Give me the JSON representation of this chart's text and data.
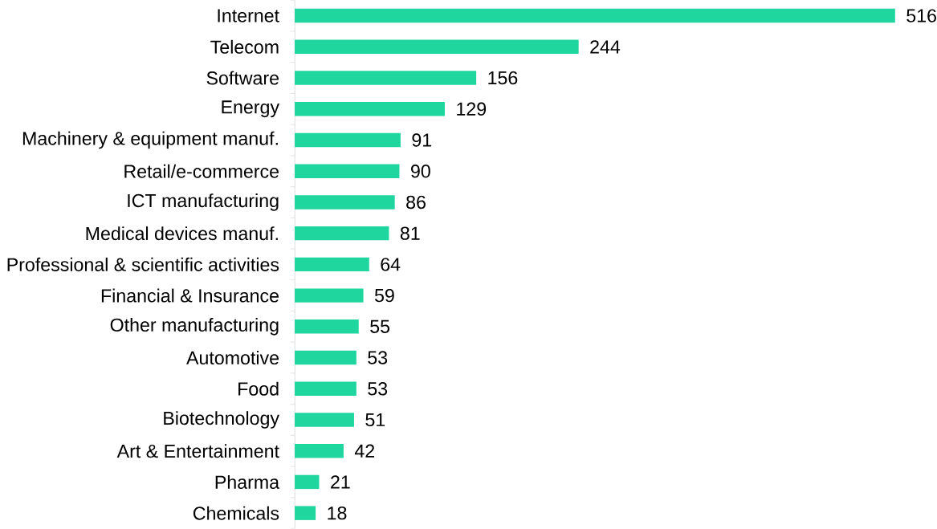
{
  "chart_data": {
    "type": "bar",
    "orientation": "horizontal",
    "color": "#1fd69f",
    "data_labels": true,
    "categories": [
      "Internet",
      "Telecom",
      "Software",
      "Energy",
      "Machinery & equipment manuf.",
      "Retail/e-commerce",
      "ICT manufacturing",
      "Medical devices manuf.",
      "Professional & scientific activities",
      "Financial & Insurance",
      "Other manufacturing",
      "Automotive",
      "Food",
      "Biotechnology",
      "Art & Entertainment",
      "Pharma",
      "Chemicals"
    ],
    "values": [
      516,
      244,
      156,
      129,
      91,
      90,
      86,
      81,
      64,
      59,
      55,
      53,
      53,
      51,
      42,
      21,
      18
    ]
  }
}
